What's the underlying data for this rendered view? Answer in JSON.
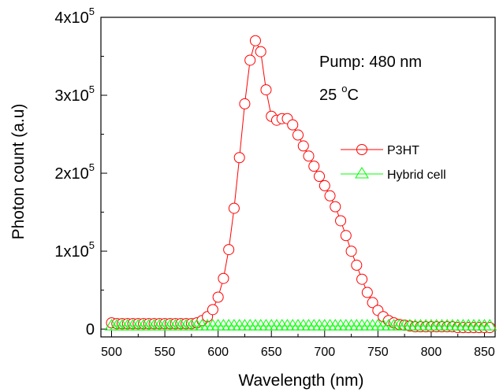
{
  "chart_data": {
    "type": "scatter",
    "xlabel": "Wavelength (nm)",
    "ylabel": "Photon count (a.u)",
    "xlim": [
      490,
      860
    ],
    "ylim": [
      -10000,
      400000
    ],
    "x_ticks": [
      {
        "value": 500,
        "label": "500"
      },
      {
        "value": 550,
        "label": "550"
      },
      {
        "value": 600,
        "label": "600"
      },
      {
        "value": 650,
        "label": "650"
      },
      {
        "value": 700,
        "label": "700"
      },
      {
        "value": 750,
        "label": "750"
      },
      {
        "value": 800,
        "label": "800"
      },
      {
        "value": 850,
        "label": "850"
      }
    ],
    "y_ticks": [
      {
        "value": 0,
        "base": "0",
        "exp": ""
      },
      {
        "value": 100000,
        "base": "1x10",
        "exp": "5"
      },
      {
        "value": 200000,
        "base": "2x10",
        "exp": "5"
      },
      {
        "value": 300000,
        "base": "3x10",
        "exp": "5"
      },
      {
        "value": 400000,
        "base": "4x10",
        "exp": "5"
      }
    ],
    "annotations": {
      "pump": "Pump: 480 nm",
      "temp_value": "25",
      "temp_degree": "o",
      "temp_unit": "C"
    },
    "legend_position": "right",
    "series": [
      {
        "name": "P3HT",
        "marker": "circle",
        "color": "#ff0000",
        "x": [
          500,
          505,
          510,
          515,
          520,
          525,
          530,
          535,
          540,
          545,
          550,
          555,
          560,
          565,
          570,
          575,
          580,
          585,
          590,
          595,
          600,
          605,
          610,
          615,
          620,
          625,
          630,
          635,
          640,
          645,
          650,
          655,
          660,
          665,
          670,
          675,
          680,
          685,
          690,
          695,
          700,
          705,
          710,
          715,
          720,
          725,
          730,
          735,
          740,
          745,
          750,
          755,
          760,
          765,
          770,
          775,
          780,
          785,
          790,
          795,
          800,
          805,
          810,
          815,
          820,
          825,
          830,
          835,
          840,
          845,
          850,
          855
        ],
        "y": [
          8000,
          7000,
          7000,
          7000,
          7000,
          7000,
          7000,
          7000,
          7000,
          7000,
          7000,
          7000,
          7000,
          7000,
          7000,
          7000,
          8000,
          11000,
          16000,
          25000,
          41000,
          65000,
          102000,
          155000,
          220000,
          289000,
          345000,
          370000,
          356000,
          307000,
          273000,
          268000,
          270000,
          270000,
          262000,
          249000,
          235000,
          222000,
          209000,
          196000,
          184000,
          171000,
          157000,
          139000,
          120000,
          100000,
          82000,
          64000,
          47000,
          34000,
          24000,
          16000,
          11000,
          8000,
          6000,
          5000,
          4000,
          3000,
          3000,
          3000,
          3000,
          3000,
          3000,
          3000,
          3000,
          2000,
          2000,
          2000,
          2000,
          2000,
          2000,
          2000
        ]
      },
      {
        "name": "Hybrid cell",
        "marker": "triangle",
        "color": "#00ff00",
        "x": [
          500,
          505,
          510,
          515,
          520,
          525,
          530,
          535,
          540,
          545,
          550,
          555,
          560,
          565,
          570,
          575,
          580,
          585,
          590,
          595,
          600,
          605,
          610,
          615,
          620,
          625,
          630,
          635,
          640,
          645,
          650,
          655,
          660,
          665,
          670,
          675,
          680,
          685,
          690,
          695,
          700,
          705,
          710,
          715,
          720,
          725,
          730,
          735,
          740,
          745,
          750,
          755,
          760,
          765,
          770,
          775,
          780,
          785,
          790,
          795,
          800,
          805,
          810,
          815,
          820,
          825,
          830,
          835,
          840,
          845,
          850,
          855
        ],
        "y": [
          4000,
          4000,
          4000,
          4000,
          4000,
          4000,
          4000,
          4000,
          4000,
          4000,
          4000,
          4000,
          4000,
          4000,
          4000,
          4000,
          4000,
          4000,
          4000,
          4000,
          4000,
          4000,
          4000,
          4000,
          4000,
          4000,
          4000,
          4000,
          4000,
          4000,
          4000,
          4000,
          4000,
          4000,
          4000,
          4000,
          4000,
          4000,
          4000,
          4000,
          4000,
          4000,
          4000,
          4000,
          4000,
          4000,
          4000,
          4000,
          4000,
          4000,
          4000,
          4000,
          4000,
          4000,
          4000,
          4000,
          4000,
          4000,
          4000,
          4000,
          4000,
          4000,
          4000,
          4000,
          4000,
          4000,
          4000,
          4000,
          4000,
          4000,
          4000,
          4000
        ]
      }
    ]
  }
}
